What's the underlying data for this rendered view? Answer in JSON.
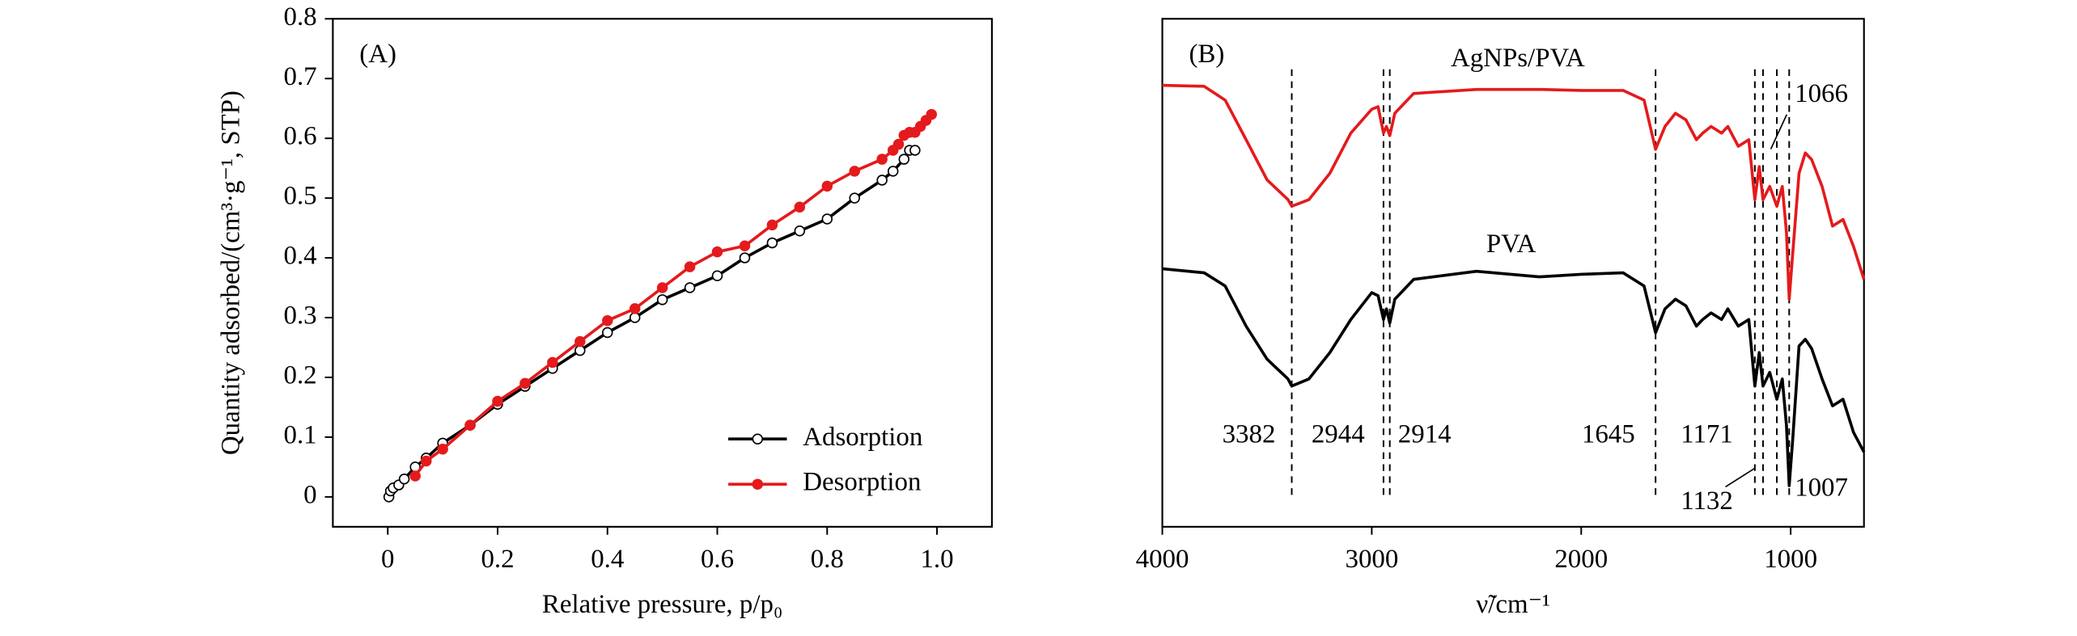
{
  "chart_data": [
    {
      "type": "line",
      "panel_label": "(A)",
      "xlabel": "Relative pressure, p/p₀",
      "ylabel": "Quantity adsorbed/(cm³·g⁻¹, STP)",
      "xlim": [
        -0.1,
        1.1
      ],
      "ylim": [
        -0.05,
        0.8
      ],
      "xticks": [
        0,
        0.2,
        0.4,
        0.6,
        0.8,
        {
          "value": 1,
          "label": "1.0"
        }
      ],
      "yticks": [
        0,
        0.1,
        0.2,
        0.3,
        0.4,
        0.5,
        0.6,
        0.7,
        0.8
      ],
      "legend": "lower right",
      "series": [
        {
          "name": "Adsorption",
          "color": "#000000",
          "marker_fill": "#ffffff",
          "x": [
            0.002,
            0.005,
            0.01,
            0.02,
            0.03,
            0.05,
            0.07,
            0.1,
            0.15,
            0.2,
            0.25,
            0.3,
            0.35,
            0.4,
            0.45,
            0.5,
            0.55,
            0.6,
            0.65,
            0.7,
            0.75,
            0.8,
            0.85,
            0.9,
            0.92,
            0.94,
            0.95,
            0.96
          ],
          "values": [
            0.0,
            0.01,
            0.015,
            0.02,
            0.03,
            0.05,
            0.065,
            0.09,
            0.12,
            0.155,
            0.185,
            0.215,
            0.245,
            0.275,
            0.3,
            0.33,
            0.35,
            0.37,
            0.4,
            0.425,
            0.445,
            0.465,
            0.5,
            0.53,
            0.545,
            0.565,
            0.58,
            0.58
          ]
        },
        {
          "name": "Desorption",
          "color": "#e41a1c",
          "marker_fill": "#e41a1c",
          "x": [
            0.99,
            0.98,
            0.97,
            0.96,
            0.95,
            0.94,
            0.93,
            0.92,
            0.9,
            0.85,
            0.8,
            0.75,
            0.7,
            0.65,
            0.6,
            0.55,
            0.5,
            0.45,
            0.4,
            0.35,
            0.3,
            0.25,
            0.2,
            0.15,
            0.1,
            0.07,
            0.05
          ],
          "values": [
            0.64,
            0.63,
            0.62,
            0.61,
            0.61,
            0.605,
            0.59,
            0.58,
            0.565,
            0.545,
            0.52,
            0.485,
            0.455,
            0.42,
            0.41,
            0.385,
            0.35,
            0.315,
            0.295,
            0.26,
            0.225,
            0.19,
            0.16,
            0.12,
            0.08,
            0.06,
            0.035
          ]
        }
      ]
    },
    {
      "type": "line",
      "panel_label": "(B)",
      "xlabel": "ν̃/cm⁻¹",
      "xlim": [
        4000,
        650
      ],
      "ylim": [
        0,
        1
      ],
      "xticks": [
        4000,
        3000,
        2000,
        1000
      ],
      "x": [
        4000,
        3800,
        3700,
        3600,
        3500,
        3400,
        3382,
        3300,
        3200,
        3100,
        3000,
        2970,
        2944,
        2930,
        2914,
        2890,
        2800,
        2500,
        2200,
        2000,
        1800,
        1700,
        1645,
        1600,
        1550,
        1500,
        1450,
        1420,
        1380,
        1330,
        1300,
        1250,
        1200,
        1171,
        1150,
        1132,
        1100,
        1066,
        1040,
        1020,
        1007,
        990,
        960,
        930,
        900,
        850,
        800,
        750,
        700,
        650
      ],
      "series": [
        {
          "name": "AgNPs/PVA",
          "color": "#e41a1c",
          "values": [
            0.869,
            0.867,
            0.84,
            0.762,
            0.683,
            0.644,
            0.631,
            0.644,
            0.696,
            0.775,
            0.822,
            0.827,
            0.775,
            0.788,
            0.77,
            0.814,
            0.853,
            0.861,
            0.861,
            0.859,
            0.859,
            0.84,
            0.743,
            0.788,
            0.814,
            0.801,
            0.762,
            0.775,
            0.788,
            0.775,
            0.788,
            0.749,
            0.762,
            0.644,
            0.709,
            0.644,
            0.67,
            0.631,
            0.67,
            0.579,
            0.448,
            0.539,
            0.696,
            0.736,
            0.723,
            0.67,
            0.592,
            0.605,
            0.552,
            0.487
          ]
        },
        {
          "name": "PVA",
          "color": "#000000",
          "values": [
            0.508,
            0.5,
            0.474,
            0.395,
            0.33,
            0.291,
            0.277,
            0.291,
            0.343,
            0.408,
            0.461,
            0.455,
            0.408,
            0.429,
            0.401,
            0.448,
            0.487,
            0.503,
            0.492,
            0.497,
            0.5,
            0.474,
            0.382,
            0.429,
            0.448,
            0.435,
            0.395,
            0.408,
            0.421,
            0.408,
            0.429,
            0.395,
            0.408,
            0.277,
            0.343,
            0.277,
            0.304,
            0.251,
            0.291,
            0.199,
            0.081,
            0.173,
            0.356,
            0.369,
            0.351,
            0.291,
            0.238,
            0.251,
            0.186,
            0.147
          ]
        }
      ],
      "peaks": [
        3382,
        2944,
        2914,
        1645,
        1171,
        1132,
        1066,
        1007
      ]
    }
  ]
}
